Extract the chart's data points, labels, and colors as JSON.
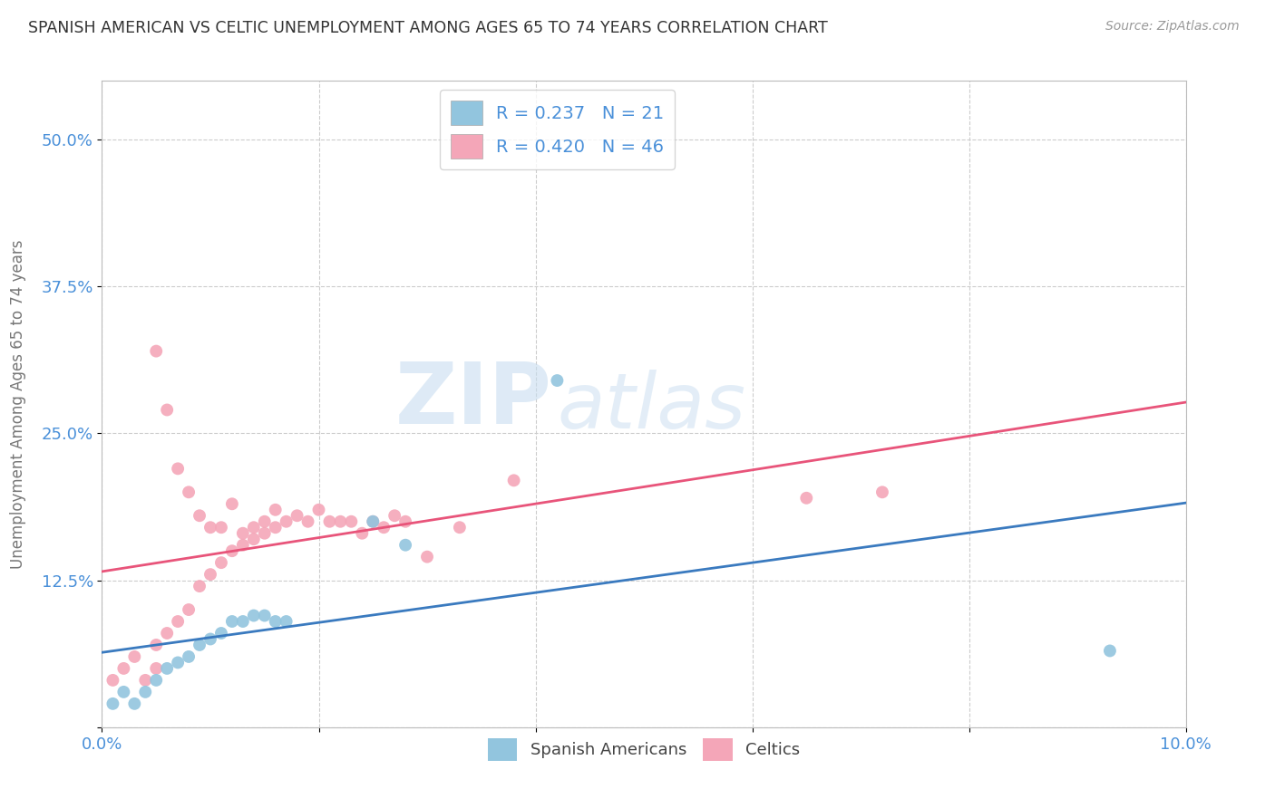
{
  "title": "SPANISH AMERICAN VS CELTIC UNEMPLOYMENT AMONG AGES 65 TO 74 YEARS CORRELATION CHART",
  "source": "Source: ZipAtlas.com",
  "ylabel": "Unemployment Among Ages 65 to 74 years",
  "xlim": [
    0.0,
    0.1
  ],
  "ylim": [
    0.0,
    0.55
  ],
  "xticks": [
    0.0,
    0.02,
    0.04,
    0.06,
    0.08,
    0.1
  ],
  "xticklabels": [
    "0.0%",
    "",
    "",
    "",
    "",
    "10.0%"
  ],
  "yticks": [
    0.0,
    0.125,
    0.25,
    0.375,
    0.5
  ],
  "yticklabels": [
    "",
    "12.5%",
    "25.0%",
    "37.5%",
    "50.0%"
  ],
  "legend_labels": [
    "Spanish Americans",
    "Celtics"
  ],
  "blue_color": "#92c5de",
  "pink_color": "#f4a6b8",
  "blue_line_color": "#3a7abf",
  "pink_line_color": "#e8547a",
  "blue_R": 0.237,
  "blue_N": 21,
  "pink_R": 0.42,
  "pink_N": 46,
  "watermark_zip": "ZIP",
  "watermark_atlas": "atlas",
  "blue_scatter_x": [
    0.001,
    0.002,
    0.003,
    0.004,
    0.005,
    0.006,
    0.007,
    0.008,
    0.009,
    0.01,
    0.011,
    0.012,
    0.013,
    0.014,
    0.015,
    0.016,
    0.017,
    0.025,
    0.028,
    0.042,
    0.093
  ],
  "blue_scatter_y": [
    0.02,
    0.03,
    0.02,
    0.03,
    0.04,
    0.05,
    0.055,
    0.06,
    0.07,
    0.075,
    0.08,
    0.09,
    0.09,
    0.095,
    0.095,
    0.09,
    0.09,
    0.175,
    0.155,
    0.295,
    0.065
  ],
  "pink_scatter_x": [
    0.001,
    0.002,
    0.003,
    0.004,
    0.005,
    0.005,
    0.005,
    0.006,
    0.006,
    0.007,
    0.007,
    0.008,
    0.008,
    0.009,
    0.009,
    0.01,
    0.01,
    0.011,
    0.011,
    0.012,
    0.012,
    0.013,
    0.013,
    0.014,
    0.014,
    0.015,
    0.015,
    0.016,
    0.016,
    0.017,
    0.018,
    0.019,
    0.02,
    0.021,
    0.022,
    0.023,
    0.024,
    0.025,
    0.026,
    0.027,
    0.028,
    0.03,
    0.033,
    0.038,
    0.065,
    0.072
  ],
  "pink_scatter_y": [
    0.04,
    0.05,
    0.06,
    0.04,
    0.05,
    0.07,
    0.32,
    0.08,
    0.27,
    0.09,
    0.22,
    0.1,
    0.2,
    0.12,
    0.18,
    0.13,
    0.17,
    0.14,
    0.17,
    0.15,
    0.19,
    0.155,
    0.165,
    0.16,
    0.17,
    0.165,
    0.175,
    0.17,
    0.185,
    0.175,
    0.18,
    0.175,
    0.185,
    0.175,
    0.175,
    0.175,
    0.165,
    0.175,
    0.17,
    0.18,
    0.175,
    0.145,
    0.17,
    0.21,
    0.195,
    0.2
  ],
  "background_color": "#ffffff",
  "grid_color": "#cccccc",
  "title_color": "#333333",
  "axis_label_color": "#777777",
  "tick_color": "#4a90d9"
}
